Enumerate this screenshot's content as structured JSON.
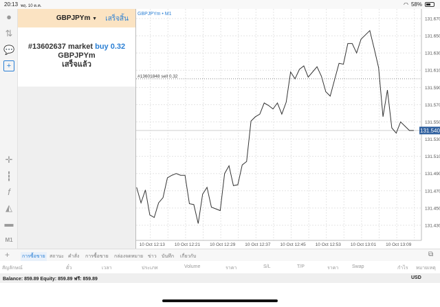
{
  "status_bar": {
    "time": "20:13",
    "date": "พฤ. 10 ต.ค.",
    "battery": "58%",
    "battery_level": 0.58
  },
  "sidebar_icons": [
    "account-icon",
    "trade-arrows-icon",
    "chat-icon",
    "new-order-icon",
    "crosshair-icon",
    "candlestick-icon",
    "indicator-f-icon",
    "objects-icon",
    "templates-icon"
  ],
  "timeframe": "M1",
  "order_panel": {
    "symbol": "GBPJPYm",
    "done_label": "เสร็จสิ้น",
    "message_prefix": "#13602637 market",
    "message_action": "buy 0.32",
    "message_symbol": "GBPJPYm",
    "message_status": "เสร็จแล้ว"
  },
  "chart_data": {
    "type": "line",
    "title": "GBPJPYm • M1",
    "start_time": "10 Oct 12:13",
    "interval_minutes": 1,
    "values": [
      131.474,
      131.456,
      131.471,
      131.442,
      131.439,
      131.456,
      131.462,
      131.485,
      131.488,
      131.49,
      131.488,
      131.488,
      131.455,
      131.454,
      131.432,
      131.466,
      131.474,
      131.451,
      131.449,
      131.447,
      131.49,
      131.499,
      131.476,
      131.477,
      131.5,
      131.504,
      131.551,
      131.556,
      131.559,
      131.572,
      131.569,
      131.565,
      131.572,
      131.559,
      131.573,
      131.608,
      131.6,
      131.611,
      131.615,
      131.602,
      131.608,
      131.614,
      131.603,
      131.585,
      131.58,
      131.599,
      131.618,
      131.617,
      131.641,
      131.641,
      131.63,
      131.646,
      131.651,
      131.656,
      131.635,
      131.613,
      131.556,
      131.587,
      131.543,
      131.537,
      131.55,
      131.545,
      131.54,
      131.54
    ],
    "x_tick_labels": [
      "10 Oct 12:13",
      "10 Oct 12:21",
      "10 Oct 12:29",
      "10 Oct 12:37",
      "10 Oct 12:45",
      "10 Oct 12:53",
      "10 Oct 13:01",
      "10 Oct 13:09"
    ],
    "y_tick_labels": [
      "131.670",
      "131.650",
      "131.630",
      "131.610",
      "131.590",
      "131.570",
      "131.550",
      "131.530",
      "131.510",
      "131.490",
      "131.470",
      "131.450",
      "131.430"
    ],
    "ylim": [
      131.418,
      131.685
    ],
    "grid": true,
    "current_price": "131.540",
    "current_price_color": "#2e5f9e",
    "order_line": {
      "label": "#13601848 sell 0.32",
      "price": 131.6
    }
  },
  "tabs": [
    "การซื้อขาย",
    "สถานะ",
    "คำสั่ง",
    "การซื้อขาย",
    "กล่องจดหมาย",
    "ข่าว",
    "บันทึก",
    "เกี่ยวกับ"
  ],
  "columns": [
    "สัญลักษณ์",
    "ตั๋ว",
    "เวลา",
    "ประเภท",
    "Volume",
    "ราคา",
    "S/L",
    "T/P",
    "ราคา",
    "Swap",
    "กำไร",
    "หมายเหตุ"
  ],
  "balance": {
    "text": "Balance: 859.89 Equity: 859.89 ฟรี: 859.89",
    "currency": "USD"
  }
}
